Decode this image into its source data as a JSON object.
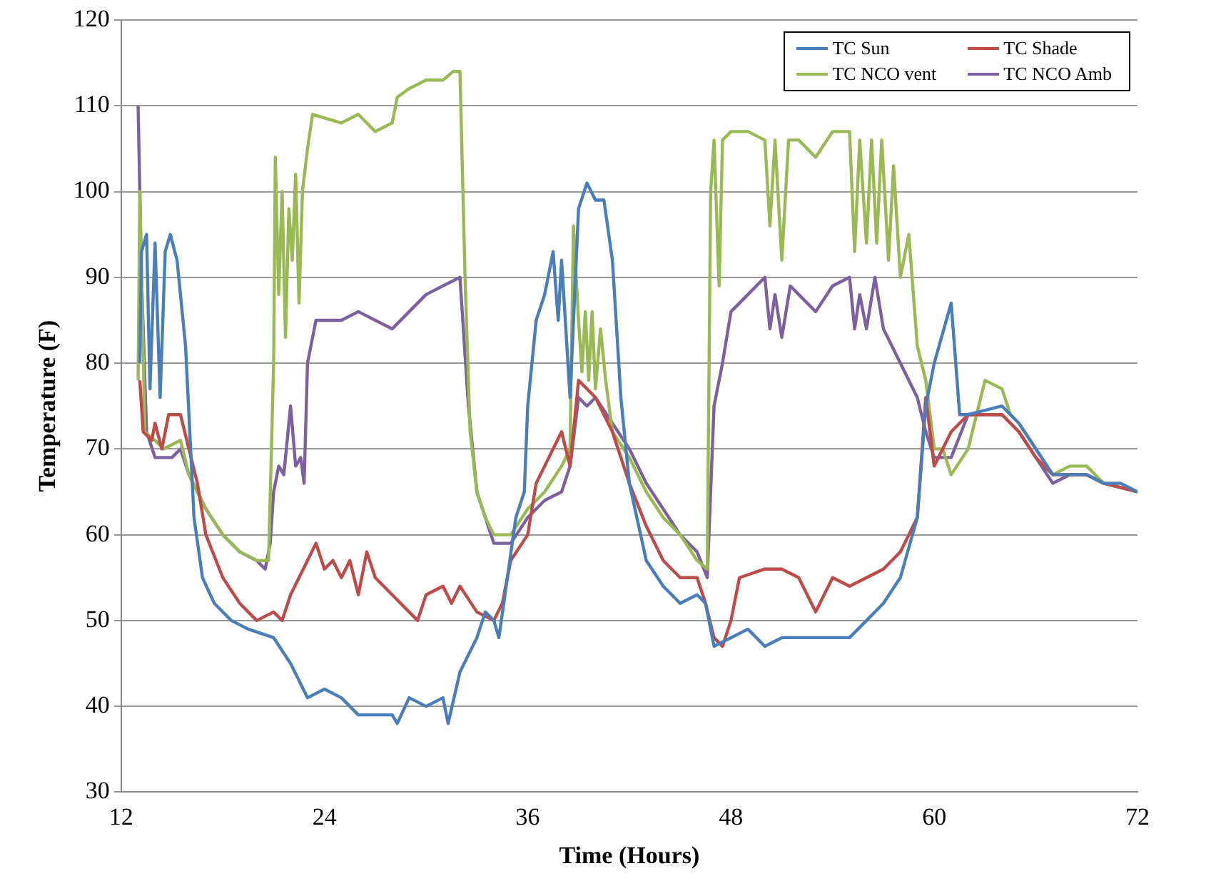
{
  "chart_data": {
    "type": "line",
    "xlabel": "Time (Hours)",
    "ylabel": "Temperature (F)",
    "xlim": [
      12,
      72
    ],
    "xticks": [
      12,
      24,
      36,
      48,
      60,
      72
    ],
    "ylim": [
      30,
      120
    ],
    "yticks": [
      30,
      40,
      50,
      60,
      70,
      80,
      90,
      100,
      110,
      120
    ],
    "grid": "y",
    "legend": "top right",
    "marker": "none",
    "line_style": "solid",
    "series": [
      {
        "name": "TC Sun",
        "color": "#4a7ebb",
        "x": [
          13.1,
          13.2,
          13.5,
          13.7,
          14.0,
          14.3,
          14.6,
          14.9,
          15.3,
          15.8,
          16.3,
          16.8,
          17.5,
          18.5,
          19.5,
          21,
          22,
          22.5,
          23,
          24,
          25,
          26,
          28,
          28.3,
          29,
          30,
          31,
          31.3,
          32,
          33,
          33.5,
          34,
          34.3,
          34.8,
          35.3,
          35.8,
          36,
          36.5,
          37,
          37.5,
          37.8,
          38,
          38.5,
          39,
          39.5,
          40,
          40.5,
          41,
          41.5,
          42,
          43,
          44,
          45,
          46,
          46.5,
          47,
          48,
          49,
          50,
          51,
          53,
          55,
          56,
          57,
          58,
          59,
          59.5,
          60,
          61,
          61.5,
          62,
          64,
          65,
          66,
          67,
          68,
          69,
          70,
          71,
          72
        ],
        "values": [
          80,
          93,
          95,
          77,
          94,
          76,
          93,
          95,
          92,
          82,
          62,
          55,
          52,
          50,
          49,
          48,
          45,
          43,
          41,
          42,
          41,
          39,
          39,
          38,
          41,
          40,
          41,
          38,
          44,
          48,
          51,
          50,
          48,
          55,
          62,
          65,
          75,
          85,
          88,
          93,
          85,
          92,
          76,
          98,
          101,
          99,
          99,
          92,
          76,
          66,
          57,
          54,
          52,
          53,
          52,
          47,
          48,
          49,
          47,
          48,
          48,
          48,
          50,
          52,
          55,
          62,
          75,
          80,
          87,
          74,
          74,
          75,
          73,
          70,
          67,
          67,
          67,
          66,
          66,
          65
        ]
      },
      {
        "name": "TC Shade",
        "color": "#be4b48",
        "x": [
          13.1,
          13.3,
          13.8,
          14.0,
          14.4,
          14.8,
          15.5,
          16,
          16.5,
          17,
          18,
          19,
          20,
          21,
          21.5,
          22,
          22.5,
          23,
          23.5,
          24,
          24.5,
          25,
          25.5,
          26,
          26.5,
          27,
          28,
          29,
          29.5,
          30,
          31,
          31.5,
          32,
          33,
          34,
          34.5,
          35,
          36,
          36.5,
          37,
          37.5,
          38,
          38.5,
          39,
          40,
          41,
          42,
          43,
          44,
          45,
          46,
          46.5,
          47,
          47.5,
          48,
          48.5,
          50,
          51,
          52,
          52.5,
          53,
          54,
          55,
          56,
          57,
          58,
          59,
          59.5,
          60,
          60.5,
          61,
          62,
          64,
          65,
          66,
          67,
          68,
          69,
          70,
          72
        ],
        "values": [
          78,
          72,
          71,
          73,
          70,
          74,
          74,
          70,
          66,
          60,
          55,
          52,
          50,
          51,
          50,
          53,
          55,
          57,
          59,
          56,
          57,
          55,
          57,
          53,
          58,
          55,
          53,
          51,
          50,
          53,
          54,
          52,
          54,
          51,
          50,
          52,
          57,
          60,
          66,
          68,
          70,
          72,
          68,
          78,
          76,
          72,
          66,
          61,
          57,
          55,
          55,
          52,
          48,
          47,
          50,
          55,
          56,
          56,
          55,
          53,
          51,
          55,
          54,
          55,
          56,
          58,
          62,
          76,
          68,
          70,
          72,
          74,
          74,
          72,
          69,
          67,
          67,
          67,
          66,
          65
        ]
      },
      {
        "name": "TC NCO vent",
        "color": "#98b954",
        "x": [
          13.0,
          13.1,
          13.4,
          14,
          14.5,
          15.5,
          16,
          17,
          18,
          19,
          20,
          20.7,
          21,
          21.1,
          21.3,
          21.5,
          21.7,
          21.9,
          22.1,
          22.3,
          22.5,
          22.7,
          23,
          23.3,
          25,
          26,
          27,
          28,
          28.3,
          29,
          30,
          31,
          31.6,
          32,
          32.3,
          32.6,
          33,
          33.5,
          34,
          35,
          36,
          37,
          38,
          38.5,
          38.7,
          39,
          39.2,
          39.4,
          39.6,
          39.8,
          40,
          40.3,
          40.6,
          41,
          42,
          43,
          44,
          45,
          46,
          46.6,
          46.8,
          47,
          47.3,
          47.5,
          48,
          49,
          50,
          50.3,
          50.6,
          51,
          51.4,
          52,
          53,
          54,
          55,
          55.3,
          55.6,
          56,
          56.3,
          56.6,
          56.9,
          57.3,
          57.6,
          58,
          58.5,
          59,
          59.5,
          60,
          60.5,
          61,
          62,
          62.5,
          63,
          64,
          64.5,
          65,
          66,
          67,
          68,
          69,
          70,
          72
        ],
        "values": [
          78,
          100,
          72,
          71,
          70,
          71,
          67,
          63,
          60,
          58,
          57,
          57,
          80,
          104,
          88,
          100,
          83,
          98,
          92,
          102,
          87,
          100,
          105,
          109,
          108,
          109,
          107,
          108,
          111,
          112,
          113,
          113,
          114,
          114,
          90,
          72,
          65,
          62,
          60,
          60,
          63,
          65,
          68,
          70,
          96,
          85,
          79,
          86,
          78,
          86,
          77,
          84,
          78,
          72,
          69,
          65,
          62,
          60,
          57,
          56,
          100,
          106,
          89,
          106,
          107,
          107,
          106,
          96,
          106,
          92,
          106,
          106,
          104,
          107,
          107,
          93,
          106,
          94,
          106,
          94,
          106,
          92,
          103,
          90,
          95,
          82,
          78,
          70,
          70,
          67,
          70,
          74,
          78,
          77,
          74,
          73,
          70,
          67,
          68,
          68,
          66,
          65
        ]
      },
      {
        "name": "TC NCO Amb",
        "color": "#7d60a0",
        "x": [
          13.0,
          13.2,
          13.5,
          14,
          15,
          15.5,
          16,
          17,
          18,
          19,
          20,
          20.5,
          20.8,
          21,
          21.3,
          21.6,
          22,
          22.3,
          22.6,
          22.8,
          23,
          23.5,
          24,
          25,
          26,
          27,
          28,
          29,
          30,
          31,
          32,
          32.5,
          33,
          34,
          35,
          36,
          37,
          38,
          38.5,
          39,
          39.5,
          40,
          41,
          42,
          43,
          44,
          45,
          46,
          46.6,
          47,
          47.5,
          48,
          49,
          50,
          50.3,
          50.6,
          51,
          51.5,
          52,
          53,
          54,
          55,
          55.3,
          55.6,
          56,
          56.5,
          57,
          58,
          59,
          59.5,
          60,
          61,
          62,
          64,
          65,
          66,
          67,
          68,
          69,
          70,
          72
        ],
        "values": [
          110,
          90,
          72,
          69,
          69,
          70,
          67,
          63,
          60,
          58,
          57,
          56,
          59,
          65,
          68,
          67,
          75,
          68,
          69,
          66,
          80,
          85,
          85,
          85,
          86,
          85,
          84,
          86,
          88,
          89,
          90,
          75,
          65,
          59,
          59,
          62,
          64,
          65,
          68,
          76,
          75,
          76,
          73,
          70,
          66,
          63,
          60,
          58,
          55,
          75,
          80,
          86,
          88,
          90,
          84,
          88,
          83,
          89,
          88,
          86,
          89,
          90,
          84,
          88,
          84,
          90,
          84,
          80,
          76,
          72,
          69,
          69,
          74,
          74,
          72,
          69,
          66,
          67,
          67,
          66,
          65
        ]
      }
    ]
  }
}
